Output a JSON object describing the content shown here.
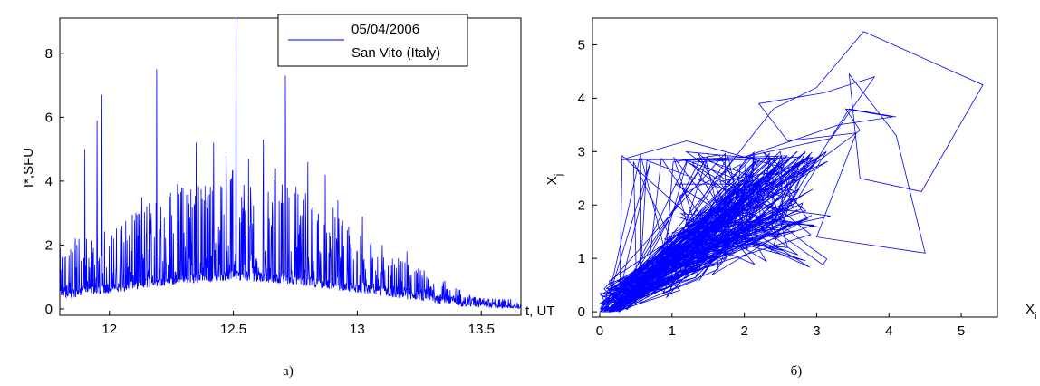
{
  "chart_data": [
    {
      "panel": "a",
      "type": "line",
      "caption": "a)",
      "xlabel": "t, UT",
      "ylabel": "I*,SFU",
      "xlim": [
        11.8,
        13.66
      ],
      "ylim": [
        -0.2,
        9.1
      ],
      "xticks": [
        "12",
        "12.5",
        "13",
        "13.5"
      ],
      "xtick_values": [
        12,
        12.5,
        13,
        13.5
      ],
      "yticks": [
        "0",
        "2",
        "4",
        "6",
        "8"
      ],
      "ytick_values": [
        0,
        2,
        4,
        6,
        8
      ],
      "grid": false,
      "legend_position": "top-right",
      "legend": [
        "05/04/2006",
        "San Vito (Italy)"
      ],
      "line_color": "#0000ff",
      "envelope": {
        "t": [
          11.8,
          11.9,
          12.0,
          12.1,
          12.2,
          12.3,
          12.4,
          12.5,
          12.6,
          12.7,
          12.8,
          12.9,
          13.0,
          13.1,
          13.2,
          13.3,
          13.4,
          13.5,
          13.6,
          13.66
        ],
        "baseline": [
          0.3,
          0.4,
          0.5,
          0.6,
          0.7,
          0.8,
          0.85,
          0.9,
          0.85,
          0.8,
          0.7,
          0.6,
          0.5,
          0.4,
          0.3,
          0.2,
          0.1,
          0.05,
          0.02,
          0.02
        ],
        "range": [
          1.6,
          2.0,
          2.0,
          2.4,
          3.0,
          3.2,
          3.2,
          3.6,
          3.4,
          3.4,
          3.0,
          2.6,
          2.0,
          1.5,
          1.2,
          0.9,
          0.6,
          0.3,
          0.1,
          0.05
        ]
      },
      "spikes": [
        {
          "t": 11.82,
          "y": 1.6
        },
        {
          "t": 11.9,
          "y": 5.0
        },
        {
          "t": 11.95,
          "y": 5.9
        },
        {
          "t": 11.97,
          "y": 6.7
        },
        {
          "t": 12.05,
          "y": 2.2
        },
        {
          "t": 12.13,
          "y": 3.5
        },
        {
          "t": 12.19,
          "y": 7.5
        },
        {
          "t": 12.28,
          "y": 3.6
        },
        {
          "t": 12.35,
          "y": 5.2
        },
        {
          "t": 12.42,
          "y": 5.2
        },
        {
          "t": 12.47,
          "y": 4.8
        },
        {
          "t": 12.51,
          "y": 9.1
        },
        {
          "t": 12.56,
          "y": 4.7
        },
        {
          "t": 12.62,
          "y": 5.3
        },
        {
          "t": 12.67,
          "y": 4.4
        },
        {
          "t": 12.71,
          "y": 7.3
        },
        {
          "t": 12.8,
          "y": 4.6
        },
        {
          "t": 12.87,
          "y": 4.2
        },
        {
          "t": 12.92,
          "y": 3.4
        },
        {
          "t": 13.02,
          "y": 2.9
        },
        {
          "t": 13.1,
          "y": 2.0
        },
        {
          "t": 13.2,
          "y": 1.8
        },
        {
          "t": 13.28,
          "y": 1.0
        }
      ]
    },
    {
      "panel": "b",
      "type": "line",
      "caption": "б)",
      "xlabel": "X_i",
      "ylabel": "X_j",
      "xlim": [
        -0.1,
        5.5
      ],
      "ylim": [
        -0.1,
        5.5
      ],
      "xticks": [
        "0",
        "1",
        "2",
        "3",
        "4",
        "5"
      ],
      "xtick_values": [
        0,
        1,
        2,
        3,
        4,
        5
      ],
      "yticks": [
        "0",
        "1",
        "2",
        "3",
        "4",
        "5"
      ],
      "ytick_values": [
        0,
        1,
        2,
        3,
        4,
        5
      ],
      "grid": false,
      "line_color": "#0000ff",
      "outer_loop": [
        [
          1.7,
          2.6
        ],
        [
          2.4,
          3.8
        ],
        [
          3.0,
          4.2
        ],
        [
          3.65,
          5.25
        ],
        [
          5.3,
          4.25
        ],
        [
          4.45,
          2.25
        ],
        [
          3.6,
          2.5
        ],
        [
          3.45,
          4.45
        ],
        [
          4.1,
          3.3
        ],
        [
          4.5,
          1.1
        ],
        [
          3.0,
          1.4
        ],
        [
          3.55,
          3.35
        ],
        [
          2.6,
          3.2
        ],
        [
          2.2,
          3.9
        ],
        [
          3.1,
          4.1
        ],
        [
          3.8,
          4.4
        ],
        [
          3.2,
          3.25
        ],
        [
          2.0,
          2.9
        ],
        [
          3.3,
          3.5
        ],
        [
          4.05,
          3.65
        ],
        [
          3.4,
          3.8
        ],
        [
          3.6,
          3.4
        ],
        [
          2.8,
          2.6
        ],
        [
          1.2,
          3.2
        ],
        [
          0.3,
          2.85
        ],
        [
          1.5,
          2.85
        ]
      ],
      "dense_center": [
        1.4,
        1.6
      ],
      "dense_spread": [
        1.3,
        1.1
      ]
    }
  ]
}
